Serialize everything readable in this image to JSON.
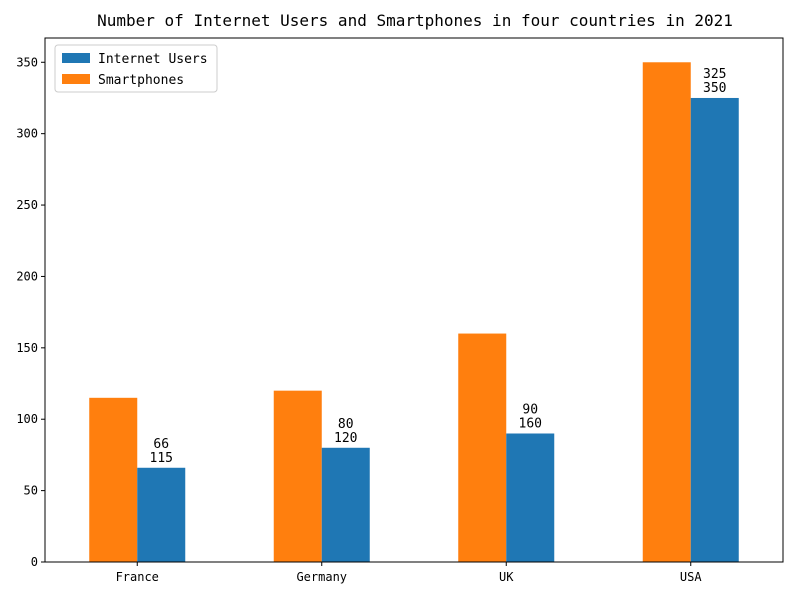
{
  "chart_data": {
    "type": "bar",
    "title": "Number of Internet Users and Smartphones in four countries in 2021",
    "xlabel": "",
    "ylabel": "",
    "categories": [
      "France",
      "Germany",
      "UK",
      "USA"
    ],
    "series": [
      {
        "name": "Smartphones",
        "values": [
          115,
          120,
          160,
          350
        ],
        "color": "#ff7f0e"
      },
      {
        "name": "Internet Users",
        "values": [
          66,
          80,
          90,
          325
        ],
        "color": "#1f77b4"
      }
    ],
    "data_labels": [
      {
        "category": "France",
        "lines": [
          "66",
          "115"
        ]
      },
      {
        "category": "Germany",
        "lines": [
          "80",
          "120"
        ]
      },
      {
        "category": "UK",
        "lines": [
          "90",
          "160"
        ]
      },
      {
        "category": "USA",
        "lines": [
          "325",
          "350"
        ]
      }
    ],
    "ylim": [
      0,
      367
    ],
    "yticks": [
      0,
      50,
      100,
      150,
      200,
      250,
      300,
      350
    ],
    "grid": false,
    "legend": {
      "placement": "top-left",
      "entries": [
        {
          "label": "Internet Users",
          "color": "#1f77b4"
        },
        {
          "label": "Smartphones",
          "color": "#ff7f0e"
        }
      ]
    }
  }
}
